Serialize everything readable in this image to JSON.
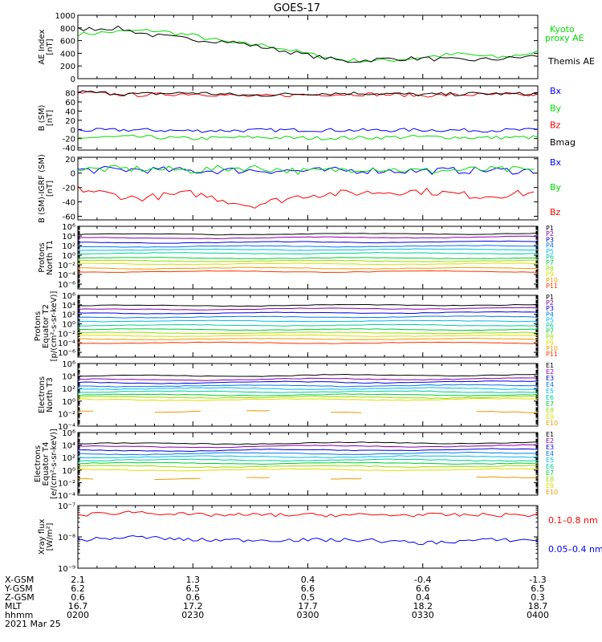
{
  "title": "GOES-17",
  "colors": {
    "black": "#000000",
    "red": "#ff0000",
    "green": "#00dd00",
    "blue": "#0000ff",
    "prot": [
      "#000000",
      "#8800aa",
      "#0000dd",
      "#0077ee",
      "#00bbee",
      "#00cc99",
      "#00cc33",
      "#99dd00",
      "#dddd00",
      "#ee9900",
      "#ff3300"
    ],
    "elec": [
      "#000000",
      "#8800aa",
      "#0000dd",
      "#0077ee",
      "#00bbee",
      "#00cc99",
      "#00cc33",
      "#99dd00",
      "#dddd00",
      "#ee9900",
      "#dd0000"
    ]
  },
  "time_axis": {
    "start": "02:00",
    "end": "04:00"
  },
  "panels": [
    {
      "id": "ae",
      "ylabel": [
        "AE Index",
        "[nT]"
      ],
      "scale": "linear",
      "yrange": [
        0,
        1000
      ],
      "ticks": [
        "1000",
        "800",
        "600",
        "400",
        "200",
        "0"
      ],
      "tick_values": [
        1000,
        800,
        600,
        400,
        200,
        0
      ],
      "legend": [
        {
          "text": "Kyoto",
          "color": "#00dd00"
        },
        {
          "text": "proxy AE",
          "color": "#00dd00"
        },
        {
          "text": "Themis AE",
          "color": "#000000"
        }
      ]
    },
    {
      "id": "bsm",
      "ylabel": [
        "B (SM)",
        "[nT]"
      ],
      "scale": "linear",
      "yrange": [
        -45,
        95
      ],
      "ticks": [
        "80",
        "60",
        "40",
        "20",
        "0",
        "-20",
        "-40"
      ],
      "tick_values": [
        80,
        60,
        40,
        20,
        0,
        -20,
        -40
      ],
      "legend": [
        {
          "text": "Bx",
          "color": "#0000ff"
        },
        {
          "text": "By",
          "color": "#00dd00"
        },
        {
          "text": "Bz",
          "color": "#ff0000"
        },
        {
          "text": "Bmag",
          "color": "#000000"
        }
      ]
    },
    {
      "id": "bigrf",
      "ylabel": [
        "B (SM)-IGRF (SM)",
        "[nT]"
      ],
      "scale": "linear",
      "yrange": [
        -65,
        22
      ],
      "ticks": [
        "20",
        "0",
        "-20",
        "-40",
        "-60"
      ],
      "tick_values": [
        20,
        0,
        -20,
        -40,
        -60
      ],
      "legend": [
        {
          "text": "Bx",
          "color": "#0000ff"
        },
        {
          "text": "By",
          "color": "#00dd00"
        },
        {
          "text": "Bz",
          "color": "#ff0000"
        }
      ]
    },
    {
      "id": "pt1",
      "ylabel": [
        "Protons",
        "North T1"
      ],
      "scale": "log",
      "yrange": [
        -7,
        6
      ],
      "ticks": [
        "10⁶",
        "10⁴",
        "10²",
        "10⁰",
        "10⁻²",
        "10⁻⁴",
        "10⁻⁶"
      ],
      "tick_values": [
        6,
        4,
        2,
        0,
        -2,
        -4,
        -6
      ],
      "legend": [
        {
          "text": "P1"
        },
        {
          "text": "P2"
        },
        {
          "text": "P3"
        },
        {
          "text": "P4"
        },
        {
          "text": "P5"
        },
        {
          "text": "P6"
        },
        {
          "text": "P7"
        },
        {
          "text": "P8"
        },
        {
          "text": "P9"
        },
        {
          "text": "P10"
        },
        {
          "text": "P11"
        }
      ]
    },
    {
      "id": "pt2",
      "ylabel": [
        "Protons",
        "Equator T2",
        "[p/(cm²-s-sr-keV)]"
      ],
      "scale": "log",
      "yrange": [
        -7,
        6
      ],
      "ticks": [
        "10⁶",
        "10⁴",
        "10²",
        "10⁰",
        "10⁻²",
        "10⁻⁴",
        "10⁻⁶"
      ],
      "tick_values": [
        6,
        4,
        2,
        0,
        -2,
        -4,
        -6
      ],
      "legend": [
        {
          "text": "P1"
        },
        {
          "text": "P2"
        },
        {
          "text": "P3"
        },
        {
          "text": "P4"
        },
        {
          "text": "P5"
        },
        {
          "text": "P6"
        },
        {
          "text": "P7"
        },
        {
          "text": "P8"
        },
        {
          "text": "P9"
        },
        {
          "text": "P10"
        },
        {
          "text": "P11"
        }
      ]
    },
    {
      "id": "et3",
      "ylabel": [
        "Electrons",
        "North T3"
      ],
      "scale": "log",
      "yrange": [
        -4,
        6
      ],
      "ticks": [
        "10⁶",
        "10⁴",
        "10²",
        "10⁰",
        "10⁻²",
        "10⁻⁴"
      ],
      "tick_values": [
        6,
        4,
        2,
        0,
        -2,
        -4
      ],
      "legend": [
        {
          "text": "E1"
        },
        {
          "text": "E2"
        },
        {
          "text": "E3"
        },
        {
          "text": "E4"
        },
        {
          "text": "E5"
        },
        {
          "text": "E6"
        },
        {
          "text": "E7"
        },
        {
          "text": "E8"
        },
        {
          "text": "E9"
        },
        {
          "text": "E10"
        }
      ]
    },
    {
      "id": "et4",
      "ylabel": [
        "Electrons",
        "Equator T4",
        "[e/(cm²-s-sr-keV)]"
      ],
      "scale": "log",
      "yrange": [
        -4,
        6
      ],
      "ticks": [
        "10⁶",
        "10⁴",
        "10²",
        "10⁰",
        "10⁻²",
        "10⁻⁴"
      ],
      "tick_values": [
        6,
        4,
        2,
        0,
        -2,
        -4
      ],
      "legend": [
        {
          "text": "E1"
        },
        {
          "text": "E2"
        },
        {
          "text": "E3"
        },
        {
          "text": "E4"
        },
        {
          "text": "E5"
        },
        {
          "text": "E6"
        },
        {
          "text": "E7"
        },
        {
          "text": "E8"
        },
        {
          "text": "E9"
        },
        {
          "text": "E10"
        }
      ]
    },
    {
      "id": "xray",
      "ylabel": [
        "Xray flux",
        "[W/m²]"
      ],
      "scale": "log",
      "yrange": [
        -9,
        -7
      ],
      "ticks": [
        "10⁻⁷",
        "10⁻⁸",
        "10⁻⁹"
      ],
      "tick_values": [
        -7,
        -8,
        -9
      ],
      "legend": [
        {
          "text": "0.1–0.8 nm",
          "color": "#ff0000"
        },
        {
          "text": "0.05–0.4 nm",
          "color": "#0000ff"
        }
      ]
    }
  ],
  "chart_data": {
    "type": "line",
    "title": "GOES-17",
    "x_range": [
      "02:00",
      "04:00"
    ],
    "panels": {
      "ae": {
        "x": [
          "02:00",
          "02:10",
          "02:20",
          "02:30",
          "02:40",
          "02:50",
          "03:00",
          "03:10",
          "03:20",
          "03:30",
          "03:40",
          "03:50",
          "04:00"
        ],
        "series": [
          {
            "name": "Kyoto proxy AE",
            "color": "#00dd00",
            "values": [
              700,
              740,
              760,
              680,
              560,
              520,
              390,
              290,
              280,
              340,
              390,
              330,
              420
            ]
          },
          {
            "name": "Themis AE",
            "color": "#000000",
            "values": [
              780,
              800,
              680,
              620,
              580,
              480,
              370,
              270,
              310,
              320,
              290,
              310,
              360
            ]
          }
        ]
      },
      "bsm": {
        "x": [
          "02:00",
          "02:15",
          "02:30",
          "02:45",
          "03:00",
          "03:15",
          "03:30",
          "03:45",
          "04:00"
        ],
        "series": [
          {
            "name": "Bx",
            "color": "#0000ff",
            "values": [
              -2,
              -1,
              -3,
              -2,
              -1,
              -2,
              -1,
              -2,
              -1
            ]
          },
          {
            "name": "By",
            "color": "#00dd00",
            "values": [
              -18,
              -16,
              -20,
              -17,
              -19,
              -18,
              -16,
              -18,
              -17
            ]
          },
          {
            "name": "Bz",
            "color": "#ff0000",
            "values": [
              80,
              75,
              78,
              72,
              76,
              77,
              74,
              76,
              75
            ]
          },
          {
            "name": "Bmag",
            "color": "#000000",
            "values": [
              82,
              77,
              80,
              74,
              78,
              79,
              76,
              78,
              77
            ]
          }
        ]
      },
      "bigrf": {
        "x": [
          "02:00",
          "02:15",
          "02:30",
          "02:45",
          "03:00",
          "03:15",
          "03:30",
          "03:45",
          "04:00"
        ],
        "series": [
          {
            "name": "Bx",
            "color": "#0000ff",
            "values": [
              4,
              5,
              3,
              4,
              3,
              4,
              3,
              4,
              3
            ]
          },
          {
            "name": "By",
            "color": "#00dd00",
            "values": [
              5,
              6,
              4,
              8,
              2,
              7,
              3,
              5,
              4
            ]
          },
          {
            "name": "Bz",
            "color": "#ff0000",
            "values": [
              -22,
              -35,
              -28,
              -45,
              -30,
              -27,
              -25,
              -32,
              -27
            ]
          }
        ]
      },
      "pt1": {
        "x": [
          "02:00",
          "04:00"
        ],
        "series": [
          {
            "name": "P1",
            "values": [
              4.3,
              4.5
            ]
          },
          {
            "name": "P2",
            "values": [
              3.5,
              3.8
            ]
          },
          {
            "name": "P3",
            "values": [
              2.6,
              2.8
            ]
          },
          {
            "name": "P4",
            "values": [
              1.8,
              1.9
            ]
          },
          {
            "name": "P5",
            "values": [
              1.1,
              1.2
            ]
          },
          {
            "name": "P6",
            "values": [
              0.4,
              0.4
            ]
          },
          {
            "name": "P7",
            "values": [
              -0.6,
              -0.6
            ]
          },
          {
            "name": "P8",
            "values": [
              -1.2,
              -1.2
            ]
          },
          {
            "name": "P9",
            "values": [
              -1.8,
              -1.8
            ]
          },
          {
            "name": "P10",
            "values": [
              -2.7,
              -2.7
            ]
          },
          {
            "name": "P11",
            "values": [
              -3.4,
              -3.4
            ]
          }
        ]
      },
      "pt2": {
        "x": [
          "02:00",
          "04:00"
        ],
        "series": [
          {
            "name": "P1",
            "values": [
              3.8,
              4.0
            ]
          },
          {
            "name": "P2",
            "values": [
              3.0,
              3.3
            ]
          },
          {
            "name": "P3",
            "values": [
              2.2,
              2.4
            ]
          },
          {
            "name": "P4",
            "values": [
              1.4,
              1.5
            ]
          },
          {
            "name": "P5",
            "values": [
              0.6,
              0.6
            ]
          },
          {
            "name": "P6",
            "values": [
              -0.3,
              -0.3
            ]
          },
          {
            "name": "P7",
            "values": [
              -1.2,
              -1.2
            ]
          },
          {
            "name": "P8",
            "values": [
              -1.9,
              -1.9
            ]
          },
          {
            "name": "P9",
            "values": [
              -2.5,
              -2.5
            ]
          },
          {
            "name": "P10",
            "values": [
              -3.2,
              -3.2
            ]
          },
          {
            "name": "P11",
            "values": [
              -4.0,
              -4.0
            ]
          }
        ]
      },
      "et3": {
        "x": [
          "02:00",
          "04:00"
        ],
        "series": [
          {
            "name": "E1",
            "values": [
              4.0,
              4.2
            ]
          },
          {
            "name": "E2",
            "values": [
              3.4,
              3.6
            ]
          },
          {
            "name": "E3",
            "values": [
              2.9,
              3.1
            ]
          },
          {
            "name": "E4",
            "values": [
              2.4,
              2.5
            ]
          },
          {
            "name": "E5",
            "values": [
              2.0,
              2.0
            ]
          },
          {
            "name": "E6",
            "values": [
              1.5,
              1.5
            ]
          },
          {
            "name": "E7",
            "values": [
              1.0,
              1.0
            ]
          },
          {
            "name": "E8",
            "values": [
              0.6,
              0.6
            ]
          },
          {
            "name": "E9",
            "values": [
              0.2,
              0.3
            ]
          },
          {
            "name": "E10",
            "values": [
              -1.6,
              -1.8
            ]
          }
        ]
      },
      "et4": {
        "x": [
          "02:00",
          "04:00"
        ],
        "series": [
          {
            "name": "E1",
            "values": [
              4.2,
              4.4
            ]
          },
          {
            "name": "E2",
            "values": [
              3.7,
              3.9
            ]
          },
          {
            "name": "E3",
            "values": [
              3.1,
              3.3
            ]
          },
          {
            "name": "E4",
            "values": [
              2.6,
              2.7
            ]
          },
          {
            "name": "E5",
            "values": [
              2.1,
              2.2
            ]
          },
          {
            "name": "E6",
            "values": [
              1.6,
              1.6
            ]
          },
          {
            "name": "E7",
            "values": [
              1.1,
              1.1
            ]
          },
          {
            "name": "E8",
            "values": [
              0.6,
              0.6
            ]
          },
          {
            "name": "E9",
            "values": [
              0.0,
              0.1
            ]
          },
          {
            "name": "E10",
            "values": [
              -1.4,
              -1.2
            ]
          }
        ]
      },
      "xray": {
        "x": [
          "02:00",
          "02:15",
          "02:30",
          "02:45",
          "03:00",
          "03:15",
          "03:30",
          "03:45",
          "04:00"
        ],
        "series": [
          {
            "name": "0.1–0.8 nm",
            "color": "#ff0000",
            "values": [
              -7.3,
              -7.2,
              -7.3,
              -7.3,
              -7.3,
              -7.3,
              -7.3,
              -7.3,
              -7.3
            ]
          },
          {
            "name": "0.05–0.4 nm",
            "color": "#0000ff",
            "values": [
              -8.1,
              -8.0,
              -8.1,
              -8.1,
              -8.1,
              -8.1,
              -8.2,
              -8.1,
              -8.1
            ]
          }
        ]
      }
    }
  },
  "ephemeris": {
    "labels": [
      "X-GSM",
      "Y-GSM",
      "Z-GSM",
      "MLT",
      "hhmm"
    ],
    "columns": [
      [
        "2.1",
        "6.2",
        "0.6",
        "16.7",
        "0200"
      ],
      [
        "1.3",
        "6.5",
        "0.6",
        "17.2",
        "0230"
      ],
      [
        "0.4",
        "6.6",
        "0.5",
        "17.7",
        "0300"
      ],
      [
        "-0.4",
        "6.6",
        "0.4",
        "18.2",
        "0330"
      ],
      [
        "-1.3",
        "6.5",
        "0.3",
        "18.7",
        "0400"
      ]
    ],
    "date": "2021 Mar 25"
  }
}
